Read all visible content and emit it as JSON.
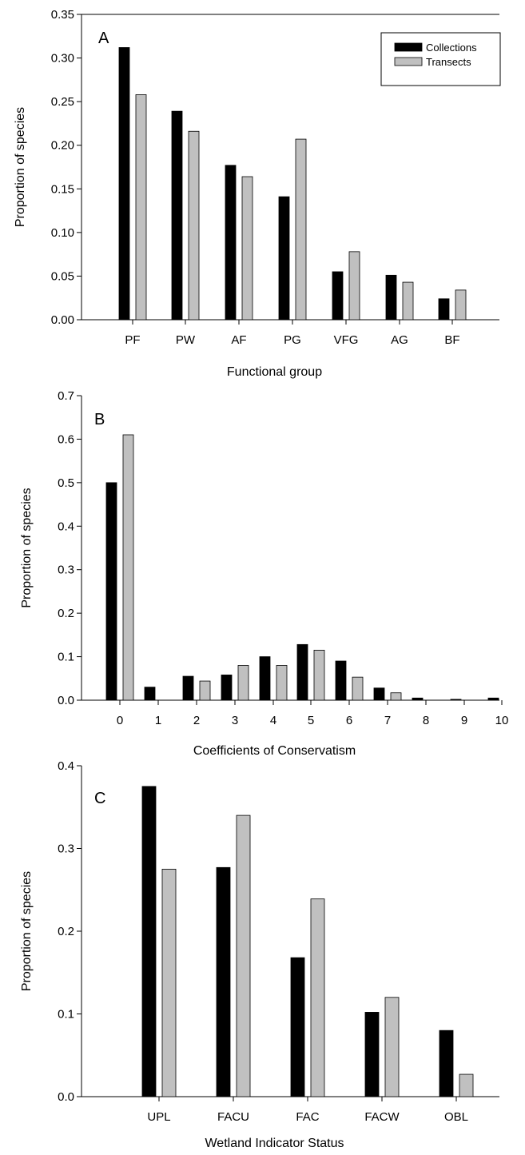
{
  "legend": {
    "entries": [
      {
        "label": "Collections",
        "color": "#000000"
      },
      {
        "label": "Transects",
        "color": "#c0c0c0"
      }
    ]
  },
  "chart_data": [
    {
      "type": "bar",
      "panel": "A",
      "xlabel": "Functional group",
      "ylabel": "Proportion of species",
      "ylim": [
        0,
        0.35
      ],
      "yticks": [
        "0.00",
        "0.05",
        "0.10",
        "0.15",
        "0.20",
        "0.25",
        "0.30",
        "0.35"
      ],
      "categories": [
        "PF",
        "PW",
        "AF",
        "PG",
        "VFG",
        "AG",
        "BF"
      ],
      "series": [
        {
          "name": "Collections",
          "color": "#000000",
          "values": [
            0.312,
            0.239,
            0.177,
            0.141,
            0.055,
            0.051,
            0.024
          ]
        },
        {
          "name": "Transects",
          "color": "#c0c0c0",
          "values": [
            0.258,
            0.216,
            0.164,
            0.207,
            0.078,
            0.043,
            0.034
          ]
        }
      ],
      "legend": "top-right"
    },
    {
      "type": "bar",
      "panel": "B",
      "xlabel": "Coefficients of Conservatism",
      "ylabel": "Proportion of species",
      "ylim": [
        0,
        0.7
      ],
      "yticks": [
        "0.0",
        "0.1",
        "0.2",
        "0.3",
        "0.4",
        "0.5",
        "0.6",
        "0.7"
      ],
      "categories": [
        "0",
        "1",
        "2",
        "3",
        "4",
        "5",
        "6",
        "7",
        "8",
        "9",
        "10"
      ],
      "series": [
        {
          "name": "Collections",
          "color": "#000000",
          "values": [
            0.5,
            0.03,
            0.055,
            0.058,
            0.1,
            0.128,
            0.09,
            0.028,
            0.005,
            0.002,
            0.005
          ]
        },
        {
          "name": "Transects",
          "color": "#c0c0c0",
          "values": [
            0.61,
            0,
            0.044,
            0.08,
            0.08,
            0.115,
            0.053,
            0.017,
            0,
            0,
            0
          ]
        }
      ]
    },
    {
      "type": "bar",
      "panel": "C",
      "xlabel": "Wetland Indicator Status",
      "ylabel": "Proportion of species",
      "ylim": [
        0,
        0.4
      ],
      "yticks": [
        "0.0",
        "0.1",
        "0.2",
        "0.3",
        "0.4"
      ],
      "categories": [
        "UPL",
        "FACU",
        "FAC",
        "FACW",
        "OBL"
      ],
      "series": [
        {
          "name": "Collections",
          "color": "#000000",
          "values": [
            0.375,
            0.277,
            0.168,
            0.102,
            0.08
          ]
        },
        {
          "name": "Transects",
          "color": "#c0c0c0",
          "values": [
            0.275,
            0.34,
            0.239,
            0.12,
            0.027
          ]
        }
      ]
    }
  ]
}
